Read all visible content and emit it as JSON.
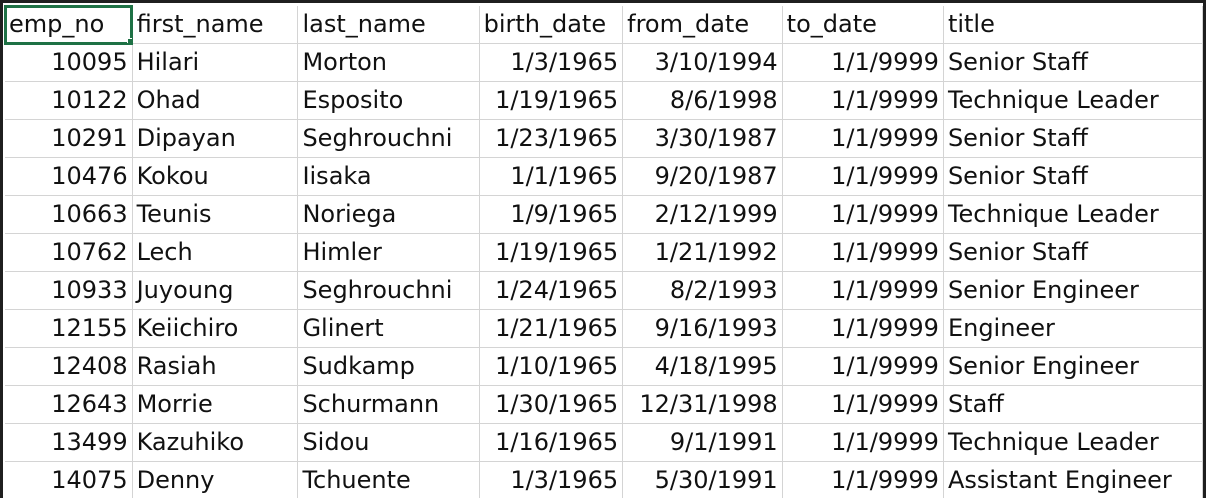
{
  "sheet": {
    "headers": [
      "emp_no",
      "first_name",
      "last_name",
      "birth_date",
      "from_date",
      "to_date",
      "title"
    ],
    "rows": [
      [
        "10095",
        "Hilari",
        "Morton",
        "1/3/1965",
        "3/10/1994",
        "1/1/9999",
        "Senior Staff"
      ],
      [
        "10122",
        "Ohad",
        "Esposito",
        "1/19/1965",
        "8/6/1998",
        "1/1/9999",
        "Technique Leader"
      ],
      [
        "10291",
        "Dipayan",
        "Seghrouchni",
        "1/23/1965",
        "3/30/1987",
        "1/1/9999",
        "Senior Staff"
      ],
      [
        "10476",
        "Kokou",
        "Iisaka",
        "1/1/1965",
        "9/20/1987",
        "1/1/9999",
        "Senior Staff"
      ],
      [
        "10663",
        "Teunis",
        "Noriega",
        "1/9/1965",
        "2/12/1999",
        "1/1/9999",
        "Technique Leader"
      ],
      [
        "10762",
        "Lech",
        "Himler",
        "1/19/1965",
        "1/21/1992",
        "1/1/9999",
        "Senior Staff"
      ],
      [
        "10933",
        "Juyoung",
        "Seghrouchni",
        "1/24/1965",
        "8/2/1993",
        "1/1/9999",
        "Senior Engineer"
      ],
      [
        "12155",
        "Keiichiro",
        "Glinert",
        "1/21/1965",
        "9/16/1993",
        "1/1/9999",
        "Engineer"
      ],
      [
        "12408",
        "Rasiah",
        "Sudkamp",
        "1/10/1965",
        "4/18/1995",
        "1/1/9999",
        "Senior Engineer"
      ],
      [
        "12643",
        "Morrie",
        "Schurmann",
        "1/30/1965",
        "12/31/1998",
        "1/1/9999",
        "Staff"
      ],
      [
        "13499",
        "Kazuhiko",
        "Sidou",
        "1/16/1965",
        "9/1/1991",
        "1/1/9999",
        "Technique Leader"
      ],
      [
        "14075",
        "Denny",
        "Tchuente",
        "1/3/1965",
        "5/30/1991",
        "1/1/9999",
        "Assistant Engineer"
      ]
    ],
    "active_cell": "emp_no",
    "colors": {
      "selection": "#1e7145",
      "gridline": "#d4d4d4",
      "text": "#111111"
    }
  }
}
